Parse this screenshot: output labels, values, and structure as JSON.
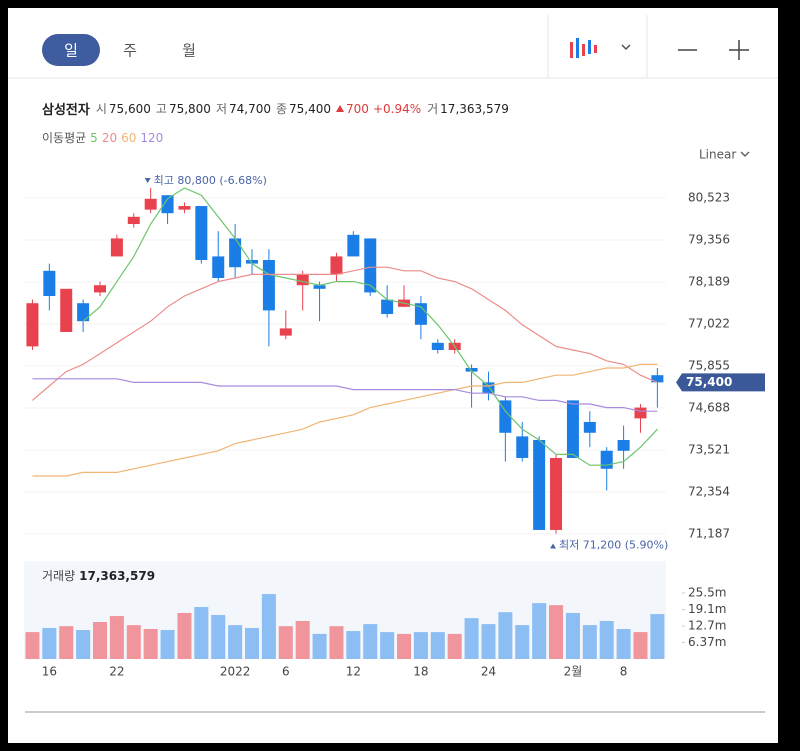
{
  "toolbar": {
    "tabs": [
      "일",
      "주",
      "월"
    ],
    "scale": "Linear"
  },
  "quote": {
    "name": "삼성전자",
    "items": [
      {
        "label": "시",
        "value": "75,600"
      },
      {
        "label": "고",
        "value": "75,800"
      },
      {
        "label": "저",
        "value": "74,700"
      },
      {
        "label": "종",
        "value": "75,400"
      }
    ],
    "change": "700",
    "change_pct": "+0.94%",
    "volume_label": "거",
    "volume": "17,363,579"
  },
  "ma_legend": {
    "title": "이동평균"
  },
  "chart_data": {
    "type": "candlestick",
    "categories": [
      null,
      "16",
      null,
      null,
      null,
      "22",
      null,
      null,
      null,
      null,
      null,
      null,
      "2022",
      null,
      null,
      "6",
      null,
      null,
      null,
      "12",
      null,
      null,
      null,
      "18",
      null,
      null,
      null,
      "24",
      null,
      null,
      null,
      null,
      "2월",
      null,
      null,
      "8",
      null,
      null
    ],
    "open": [
      76400,
      78500,
      76800,
      77600,
      77900,
      78900,
      79800,
      80200,
      80600,
      80200,
      80300,
      78900,
      79400,
      78800,
      78800,
      76700,
      78100,
      78100,
      78400,
      79500,
      79400,
      77700,
      77500,
      77600,
      76500,
      76300,
      75800,
      75400,
      74900,
      73900,
      73800,
      71300,
      74900,
      74300,
      73500,
      73800,
      74400,
      75600
    ],
    "high": [
      77700,
      78700,
      78000,
      77700,
      78200,
      79500,
      80100,
      80800,
      80600,
      80400,
      80300,
      79600,
      79800,
      79100,
      79100,
      77400,
      78500,
      78200,
      79000,
      79600,
      79400,
      78100,
      78100,
      77800,
      76600,
      76600,
      75900,
      75700,
      75000,
      74300,
      73900,
      73400,
      74900,
      74600,
      73600,
      74200,
      74800,
      75800
    ],
    "low": [
      76300,
      77400,
      76800,
      76800,
      77800,
      78900,
      79700,
      80100,
      79800,
      80100,
      78700,
      78200,
      78300,
      78400,
      76400,
      76600,
      77400,
      77100,
      78200,
      78900,
      77800,
      77200,
      77500,
      76600,
      76200,
      76200,
      74700,
      74900,
      73200,
      73200,
      71300,
      71200,
      73300,
      73600,
      72400,
      73000,
      74000,
      74700
    ],
    "close": [
      77600,
      77800,
      78000,
      77100,
      78100,
      79400,
      80000,
      80500,
      80100,
      80300,
      78800,
      78300,
      78600,
      78700,
      77400,
      76900,
      78400,
      78000,
      78900,
      78900,
      77900,
      77300,
      77700,
      77000,
      76300,
      76500,
      75700,
      75100,
      74000,
      73300,
      71300,
      73300,
      73300,
      74000,
      73000,
      73500,
      74700,
      75400
    ],
    "up_color": "#e8424f",
    "down_color": "#1b7de6",
    "series": [
      {
        "name": "5",
        "color": "#6cc46c",
        "values": [
          null,
          null,
          null,
          77100,
          77500,
          78200,
          78900,
          79800,
          80500,
          80800,
          80600,
          80000,
          79400,
          78700,
          78400,
          78300,
          78200,
          78100,
          78200,
          78200,
          78100,
          77700,
          77600,
          77500,
          77000,
          76400,
          75700,
          75300,
          74600,
          74100,
          73800,
          73400,
          73400,
          73100,
          73100,
          73200,
          73600,
          74100
        ]
      },
      {
        "name": "20",
        "color": "#ec8c8c",
        "values": [
          74900,
          75300,
          75700,
          75900,
          76200,
          76500,
          76800,
          77100,
          77500,
          77800,
          78000,
          78200,
          78300,
          78400,
          78400,
          78400,
          78400,
          78400,
          78400,
          78500,
          78600,
          78600,
          78500,
          78500,
          78300,
          78200,
          78000,
          77700,
          77400,
          77000,
          76700,
          76400,
          76300,
          76200,
          76000,
          75900,
          75600,
          75400
        ]
      },
      {
        "name": "60",
        "color": "#f0b574",
        "values": [
          72800,
          72800,
          72800,
          72900,
          72900,
          72900,
          73000,
          73100,
          73200,
          73300,
          73400,
          73500,
          73700,
          73800,
          73900,
          74000,
          74100,
          74300,
          74400,
          74500,
          74700,
          74800,
          74900,
          75000,
          75100,
          75200,
          75300,
          75300,
          75400,
          75400,
          75500,
          75600,
          75600,
          75700,
          75800,
          75800,
          75900,
          75900
        ]
      },
      {
        "name": "120",
        "color": "#a78bdf",
        "values": [
          75500,
          75500,
          75500,
          75500,
          75500,
          75500,
          75400,
          75400,
          75400,
          75400,
          75400,
          75300,
          75300,
          75300,
          75300,
          75300,
          75300,
          75300,
          75300,
          75200,
          75200,
          75200,
          75200,
          75200,
          75200,
          75200,
          75100,
          75100,
          75000,
          75000,
          74900,
          74900,
          74800,
          74800,
          74700,
          74700,
          74600,
          74600
        ]
      }
    ],
    "ylim": [
      70743,
      81301
    ],
    "yticks": [
      {
        "value": 80523,
        "label": "80,523"
      },
      {
        "value": 79356,
        "label": "79,356"
      },
      {
        "value": 78189,
        "label": "78,189"
      },
      {
        "value": 77022,
        "label": "77,022"
      },
      {
        "value": 75855,
        "label": "75,855"
      },
      {
        "value": 74688,
        "label": "74,688"
      },
      {
        "value": 73521,
        "label": "73,521"
      },
      {
        "value": 72354,
        "label": "72,354"
      },
      {
        "value": 71187,
        "label": "71,187"
      }
    ],
    "grid": true,
    "annotations": [
      {
        "label": "최고 80,800 (-6.68%)",
        "value": 80800,
        "kind": "high"
      },
      {
        "label": "최저 71,200 (5.90%)",
        "value": 71200,
        "kind": "low"
      }
    ],
    "price_tag": {
      "value": 75400,
      "label": "75,400"
    },
    "volume": {
      "name": "거래량",
      "label": "17,363,579",
      "up_color": "#f0959b",
      "down_color": "#8cbdf3",
      "values": [
        10400000,
        12000000,
        12700000,
        11200000,
        14300000,
        16600000,
        13100000,
        11600000,
        11200000,
        17800000,
        20100000,
        17000000,
        13100000,
        12000000,
        25100000,
        12700000,
        14700000,
        9700000,
        12700000,
        10800000,
        13500000,
        10400000,
        9700000,
        10400000,
        10400000,
        9700000,
        15800000,
        13500000,
        18100000,
        13100000,
        21600000,
        20800000,
        17800000,
        13100000,
        14700000,
        11600000,
        10400000,
        17363579
      ],
      "ylim": [
        0,
        37500000
      ],
      "yticks": [
        {
          "value": 6370000,
          "label": "6.37m"
        },
        {
          "value": 12700000,
          "label": "12.7m"
        },
        {
          "value": 19100000,
          "label": "19.1m"
        },
        {
          "value": 25500000,
          "label": "25.5m"
        }
      ]
    }
  }
}
